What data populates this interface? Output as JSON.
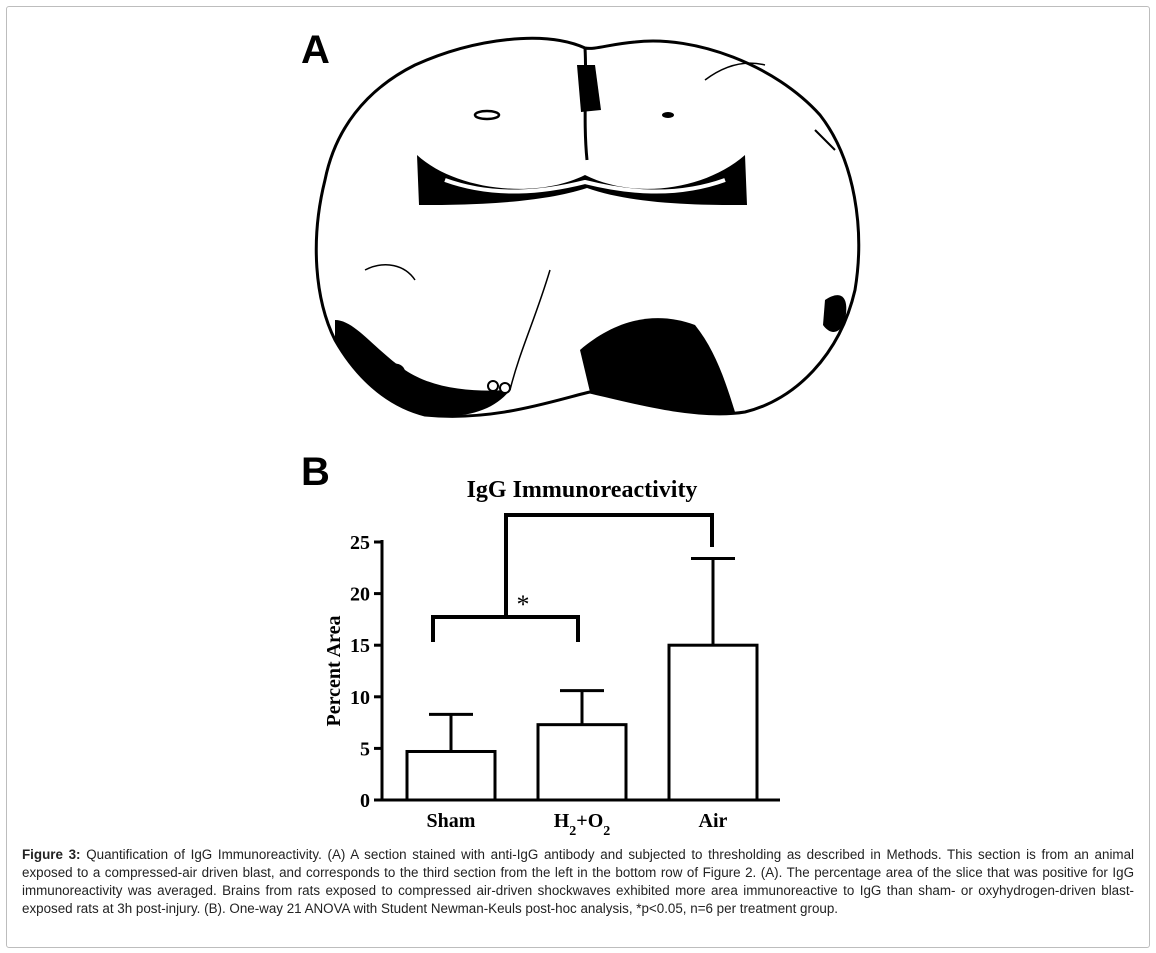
{
  "panels": {
    "a_label": "A",
    "b_label": "B"
  },
  "chart_data": {
    "type": "bar",
    "title": "IgG Immunoreactivity",
    "ylabel": "Percent Area",
    "xlabel": "",
    "categories": [
      "Sham",
      "H2+O2",
      "Air"
    ],
    "values": [
      4.7,
      7.3,
      15.0
    ],
    "errors": [
      3.6,
      3.3,
      8.4
    ],
    "ylim": [
      0,
      25
    ],
    "yticks": [
      0,
      5,
      10,
      15,
      20,
      25
    ],
    "significance": [
      {
        "group": [
          "Sham",
          "H2+O2"
        ],
        "vs": "Air",
        "label": "*"
      }
    ],
    "colors": {
      "bar_fill": "#ffffff",
      "stroke": "#000000"
    }
  },
  "caption": {
    "label": "Figure 3:",
    "text": " Quantification of IgG Immunoreactivity. (A) A section stained with anti-IgG antibody and subjected to thresholding as described in Methods. This section is from an animal exposed to a compressed-air driven blast, and corresponds to the third section from the left in the bottom row of Figure 2. (A). The percentage area of the slice that was positive for IgG immunoreactivity was averaged. Brains from rats exposed to compressed air-driven shockwaves exhibited more area immunoreactive to IgG than sham- or oxyhydrogen-driven blast-exposed rats at 3h post-injury. (B). One-way 21 ANOVA with Student Newman-Keuls post-hoc analysis, *p<0.05, n=6 per treatment group."
  }
}
